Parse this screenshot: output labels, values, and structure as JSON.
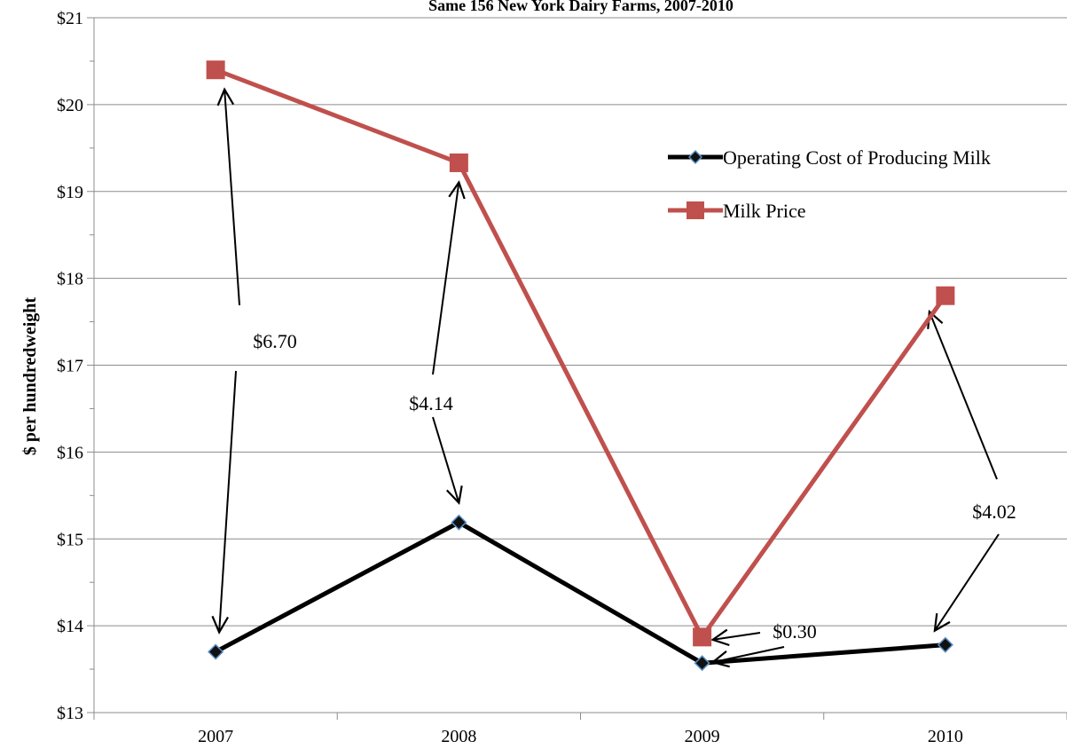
{
  "chart_data": {
    "type": "line",
    "title": "Same 156 New York Dairy Farms, 2007-2010",
    "xlabel": "",
    "ylabel": "$ per hundredweight",
    "categories": [
      "2007",
      "2008",
      "2009",
      "2010"
    ],
    "ylim": [
      13,
      21
    ],
    "y_ticks": [
      "$13",
      "$14",
      "$15",
      "$16",
      "$17",
      "$18",
      "$19",
      "$20",
      "$21"
    ],
    "grid": true,
    "legend_position": "top-right",
    "series": [
      {
        "name": "Operating Cost of Producing Milk",
        "values": [
          13.7,
          15.19,
          13.57,
          13.78
        ],
        "color": "#000000",
        "marker": "diamond",
        "marker_fill": "#111111",
        "marker_edge": "#5b8fc7"
      },
      {
        "name": "Milk Price",
        "values": [
          20.4,
          19.33,
          13.87,
          17.8
        ],
        "color": "#c0504d",
        "marker": "square",
        "marker_fill": "#c0504d"
      }
    ],
    "annotations": [
      {
        "text": "$6.70",
        "category": "2007"
      },
      {
        "text": "$4.14",
        "category": "2008"
      },
      {
        "text": "$0.30",
        "category": "2009"
      },
      {
        "text": "$4.02",
        "category": "2010"
      }
    ]
  }
}
